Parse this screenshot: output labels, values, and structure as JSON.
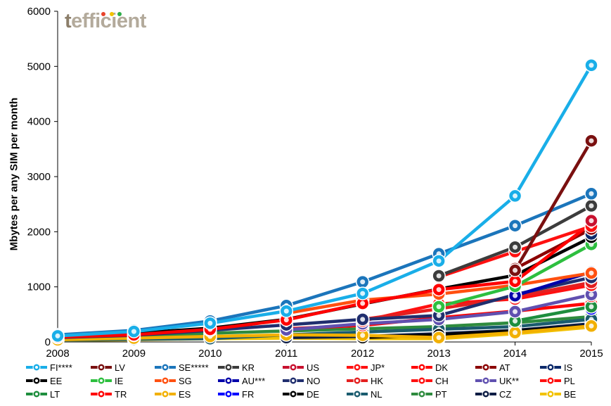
{
  "brand": {
    "logo_prefix": "t",
    "logo_rest": "efficient",
    "dot_colors": [
      "#e8432b",
      "#f2c200",
      "#2dae49"
    ]
  },
  "chart_data": {
    "type": "line",
    "ylabel": "Mbytes per any SIM per month",
    "xlabel": "",
    "x": [
      "2008",
      "2009",
      "2010",
      "2011",
      "2012",
      "2013",
      "2014",
      "2015"
    ],
    "ylim": [
      0,
      6000
    ],
    "yticks": [
      0,
      1000,
      2000,
      3000,
      4000,
      5000,
      6000
    ],
    "grid": false,
    "legend_position": "bottom",
    "series": [
      {
        "name": "FI****",
        "color": "#19aee8",
        "values": [
          110,
          190,
          340,
          560,
          880,
          1470,
          2650,
          5020
        ]
      },
      {
        "name": "LV",
        "color": "#7a1010",
        "values": [
          null,
          null,
          null,
          null,
          null,
          null,
          1300,
          3650
        ]
      },
      {
        "name": "SE*****",
        "color": "#1b75bb",
        "values": [
          130,
          210,
          380,
          660,
          1090,
          1600,
          2110,
          2690
        ]
      },
      {
        "name": "KR",
        "color": "#3c3c3c",
        "values": [
          null,
          null,
          null,
          null,
          null,
          1200,
          1720,
          2470
        ]
      },
      {
        "name": "US",
        "color": "#c8102e",
        "values": [
          null,
          null,
          null,
          null,
          null,
          null,
          null,
          2200
        ]
      },
      {
        "name": "JP*",
        "color": "#ff1010",
        "values": [
          null,
          null,
          null,
          null,
          null,
          1180,
          1640,
          2100
        ]
      },
      {
        "name": "DK",
        "color": "#ff0000",
        "values": [
          90,
          130,
          230,
          400,
          700,
          950,
          1100,
          2150
        ]
      },
      {
        "name": "AT",
        "color": "#8b0000",
        "values": [
          null,
          null,
          null,
          null,
          null,
          null,
          1330,
          2050
        ]
      },
      {
        "name": "IS",
        "color": "#0c2a6b",
        "values": [
          null,
          null,
          null,
          null,
          null,
          null,
          null,
          1960
        ]
      },
      {
        "name": "EE",
        "color": "#000000",
        "values": [
          100,
          160,
          250,
          410,
          690,
          960,
          1210,
          1900
        ]
      },
      {
        "name": "IE",
        "color": "#2dbf3f",
        "values": [
          null,
          null,
          null,
          null,
          null,
          640,
          1010,
          1770
        ]
      },
      {
        "name": "SG",
        "color": "#ff5010",
        "values": [
          null,
          null,
          null,
          520,
          760,
          870,
          1030,
          1250
        ]
      },
      {
        "name": "AU***",
        "color": "#0000aa",
        "values": [
          null,
          null,
          null,
          null,
          null,
          null,
          840,
          1270
        ]
      },
      {
        "name": "NO",
        "color": "#202e6e",
        "values": [
          80,
          120,
          210,
          310,
          410,
          480,
          860,
          1170
        ]
      },
      {
        "name": "HK",
        "color": "#e42020",
        "values": [
          null,
          null,
          null,
          null,
          410,
          600,
          820,
          1080
        ]
      },
      {
        "name": "CH",
        "color": "#ff1010",
        "values": [
          null,
          null,
          null,
          null,
          380,
          690,
          780,
          1030
        ]
      },
      {
        "name": "UK**",
        "color": "#6050b0",
        "values": [
          null,
          null,
          null,
          220,
          330,
          410,
          550,
          860
        ]
      },
      {
        "name": "PL",
        "color": "#ff1010",
        "values": [
          null,
          null,
          null,
          null,
          null,
          null,
          null,
          830
        ]
      },
      {
        "name": "LT",
        "color": "#1e8e3e",
        "values": [
          null,
          null,
          null,
          null,
          null,
          null,
          380,
          640
        ]
      },
      {
        "name": "TR",
        "color": "#ff0000",
        "values": [
          null,
          null,
          null,
          240,
          300,
          440,
          560,
          700
        ]
      },
      {
        "name": "ES",
        "color": "#f2b000",
        "values": [
          40,
          70,
          100,
          130,
          120,
          80,
          170,
          290
        ]
      },
      {
        "name": "FR",
        "color": "#0000ff",
        "values": [
          null,
          null,
          null,
          null,
          null,
          null,
          null,
          600
        ]
      },
      {
        "name": "DE",
        "color": "#000000",
        "values": [
          null,
          null,
          null,
          null,
          80,
          130,
          200,
          290
        ]
      },
      {
        "name": "NL",
        "color": "#1a5b6e",
        "values": [
          30,
          50,
          60,
          130,
          180,
          230,
          280,
          410
        ]
      },
      {
        "name": "PT",
        "color": "#2e8b3e",
        "values": [
          60,
          80,
          160,
          200,
          240,
          280,
          350,
          460
        ]
      },
      {
        "name": "CZ",
        "color": "#0c1c44",
        "values": [
          null,
          null,
          null,
          80,
          100,
          150,
          210,
          330
        ]
      },
      {
        "name": "BE",
        "color": "#f2c200",
        "values": [
          30,
          40,
          60,
          70,
          60,
          60,
          150,
          270
        ]
      }
    ]
  }
}
